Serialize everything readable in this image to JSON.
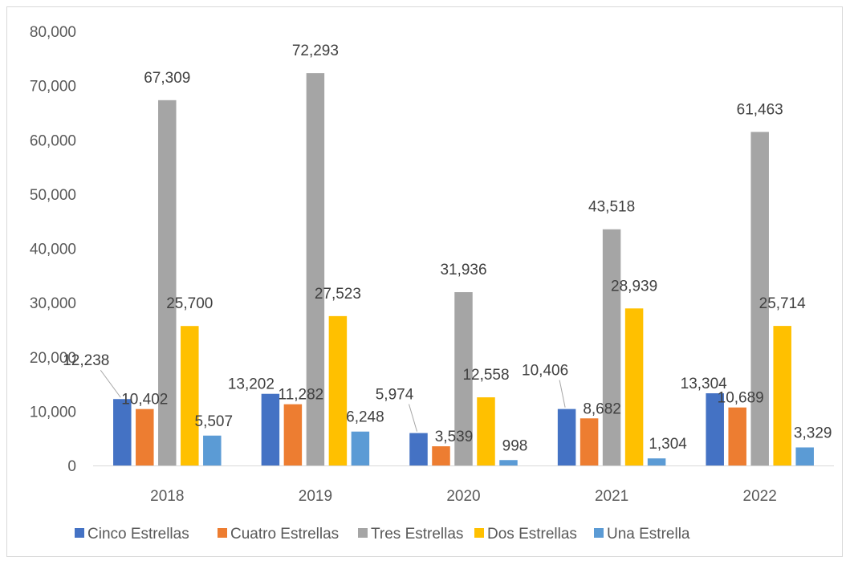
{
  "chart_data": {
    "type": "bar",
    "title": "",
    "xlabel": "",
    "ylabel": "",
    "categories": [
      "2018",
      "2019",
      "2020",
      "2021",
      "2022"
    ],
    "ylim": [
      0,
      80000
    ],
    "yticks": [
      0,
      10000,
      20000,
      30000,
      40000,
      50000,
      60000,
      70000,
      80000
    ],
    "ytick_labels": [
      "0",
      "10,000",
      "20,000",
      "30,000",
      "40,000",
      "50,000",
      "60,000",
      "70,000",
      "80,000"
    ],
    "grid": false,
    "legend_position": "bottom",
    "series": [
      {
        "name": "Cinco Estrellas",
        "color": "#4472c4",
        "values": [
          12238,
          13202,
          5974,
          10406,
          13304
        ],
        "labels": [
          "12,238",
          "13,202",
          "5,974",
          "10,406",
          "13,304"
        ]
      },
      {
        "name": "Cuatro Estrellas",
        "color": "#ed7d31",
        "values": [
          10402,
          11282,
          3539,
          8682,
          10689
        ],
        "labels": [
          "10,402",
          "11,282",
          "3,539",
          "8,682",
          "10,689"
        ]
      },
      {
        "name": "Tres Estrellas",
        "color": "#a5a5a5",
        "values": [
          67309,
          72293,
          31936,
          43518,
          61463
        ],
        "labels": [
          "67,309",
          "72,293",
          "31,936",
          "43,518",
          "61,463"
        ]
      },
      {
        "name": "Dos Estrellas",
        "color": "#ffc000",
        "values": [
          25700,
          27523,
          12558,
          28939,
          25714
        ],
        "labels": [
          "25,700",
          "27,523",
          "12,558",
          "28,939",
          "25,714"
        ]
      },
      {
        "name": "Una Estrella",
        "color": "#5b9bd5",
        "values": [
          5507,
          6248,
          998,
          1304,
          3329
        ],
        "labels": [
          "5,507",
          "6,248",
          "998",
          "1,304",
          "3,329"
        ]
      }
    ]
  }
}
